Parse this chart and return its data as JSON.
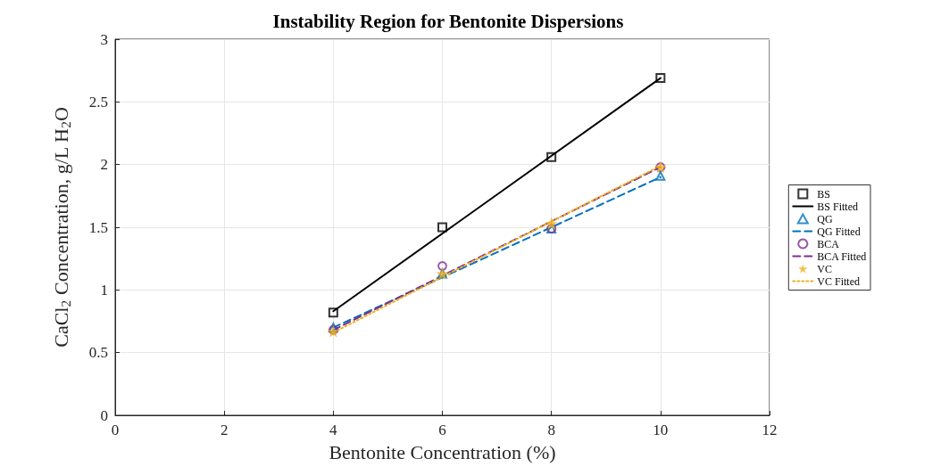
{
  "chart_data": {
    "type": "scatter",
    "title": "Instability Region for Bentonite Dispersions",
    "xlabel": "Bentonite Concentration (%)",
    "ylabel": "CaCl$_{2}$ Concentration, g/L H$_{2}$O",
    "xlim": [
      0,
      12
    ],
    "xticks": [
      0,
      2,
      4,
      6,
      8,
      10,
      12
    ],
    "ylim": [
      0,
      3
    ],
    "yticks": [
      0,
      0.5,
      1,
      1.5,
      2,
      2.5,
      3
    ],
    "grid": true,
    "legend": "right",
    "series": [
      {
        "name": "BS",
        "marker": "square",
        "color": "#000000",
        "x": [
          4,
          6,
          8,
          10
        ],
        "values": [
          0.82,
          1.5,
          2.06,
          2.69
        ]
      },
      {
        "name": "BS Fitted",
        "type": "line",
        "marker": "none",
        "line_style": "solid",
        "color": "#000000",
        "x": [
          4,
          10
        ],
        "values": [
          0.83,
          2.69
        ]
      },
      {
        "name": "QG",
        "marker": "triangle",
        "color": "#0072bd",
        "x": [
          4,
          6,
          8,
          10
        ],
        "values": [
          0.7,
          1.13,
          1.49,
          1.91
        ]
      },
      {
        "name": "QG Fitted",
        "type": "line",
        "marker": "none",
        "line_style": "dashed",
        "color": "#0072bd",
        "x": [
          4,
          10
        ],
        "values": [
          0.7,
          1.9
        ]
      },
      {
        "name": "BCA",
        "marker": "circle",
        "color": "#7e2f8e",
        "x": [
          4,
          6,
          8,
          10
        ],
        "values": [
          0.68,
          1.19,
          1.49,
          1.98
        ]
      },
      {
        "name": "BCA Fitted",
        "type": "line",
        "marker": "none",
        "line_style": "dashed",
        "color": "#7e2f8e",
        "x": [
          4,
          10
        ],
        "values": [
          0.68,
          1.98
        ]
      },
      {
        "name": "VC",
        "marker": "star",
        "color": "#edb120",
        "x": [
          4,
          6,
          8,
          10
        ],
        "values": [
          0.67,
          1.13,
          1.53,
          1.98
        ]
      },
      {
        "name": "VC Fitted",
        "type": "line",
        "marker": "none",
        "line_style": "dotted",
        "color": "#edb120",
        "x": [
          4,
          10
        ],
        "values": [
          0.66,
          1.99
        ]
      }
    ]
  }
}
